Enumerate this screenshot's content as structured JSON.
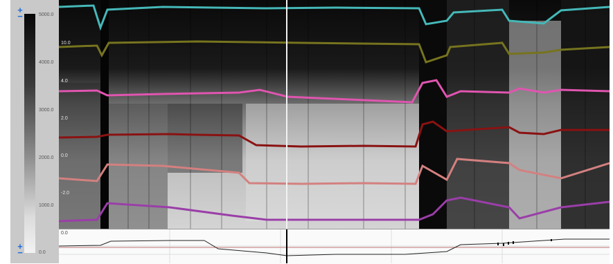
{
  "color_scale": {
    "labels": [
      "5000.0",
      "4000.0",
      "3000.0",
      "2000.0",
      "1000.0",
      "0.0"
    ]
  },
  "depth_labels": [
    "10.0",
    "4.0",
    "2.0",
    "0.0",
    "-2.0"
  ],
  "bottom_strip": {
    "axis_label": "0.0"
  },
  "controls": {
    "top_zoom_in": "+",
    "top_zoom_out": "−",
    "bottom_zoom_in": "+",
    "bottom_zoom_out": "−"
  },
  "colors": {
    "teal": "#45b8b8",
    "olive": "#76741e",
    "pink": "#e055b0",
    "dark_red": "#8a1212",
    "salmon": "#d48080",
    "purple": "#9a3ea8"
  }
}
